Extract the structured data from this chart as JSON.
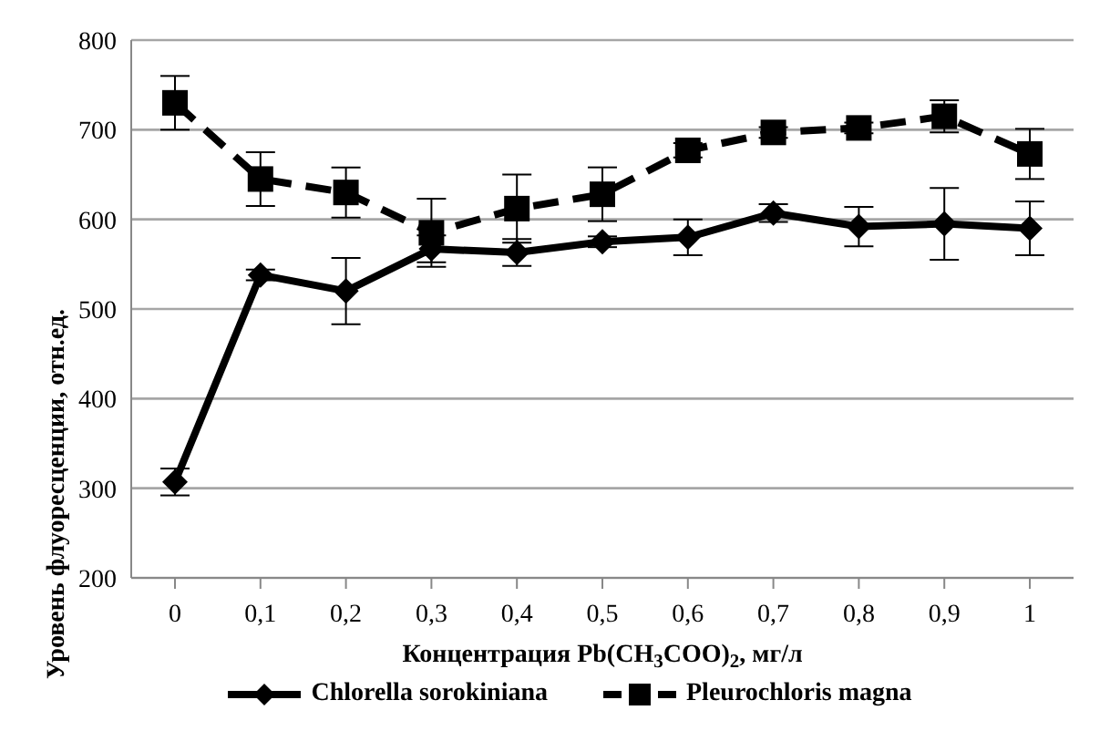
{
  "chart_data": {
    "type": "line",
    "xlabel": "Концентрация Pb(CH$_{3}$COO)$_{2}$, мг/л",
    "ylabel": "Уровень флуоресценции, отн.ед.",
    "categories": [
      "0",
      "0,1",
      "0,2",
      "0,3",
      "0,4",
      "0,5",
      "0,6",
      "0,7",
      "0,8",
      "0,9",
      "1"
    ],
    "series": [
      {
        "name": "Chlorella sorokiniana",
        "color": "#000000",
        "marker": "diamond",
        "line_style": "solid",
        "values": [
          307,
          538,
          520,
          567,
          563,
          575,
          580,
          607,
          592,
          595,
          590
        ],
        "errors": [
          15,
          6,
          37,
          15,
          15,
          6,
          20,
          10,
          22,
          40,
          30
        ]
      },
      {
        "name": "Pleurochloris magna",
        "color": "#000000",
        "marker": "square",
        "line_style": "dashed",
        "values": [
          730,
          645,
          630,
          585,
          612,
          628,
          677,
          697,
          702,
          715,
          673
        ],
        "errors": [
          30,
          30,
          28,
          38,
          38,
          30,
          8,
          6,
          6,
          18,
          28
        ]
      }
    ],
    "ylim": [
      200,
      800
    ],
    "yticks": [
      200,
      300,
      400,
      500,
      600,
      700,
      800
    ],
    "grid": "y",
    "legend": "bottom"
  }
}
